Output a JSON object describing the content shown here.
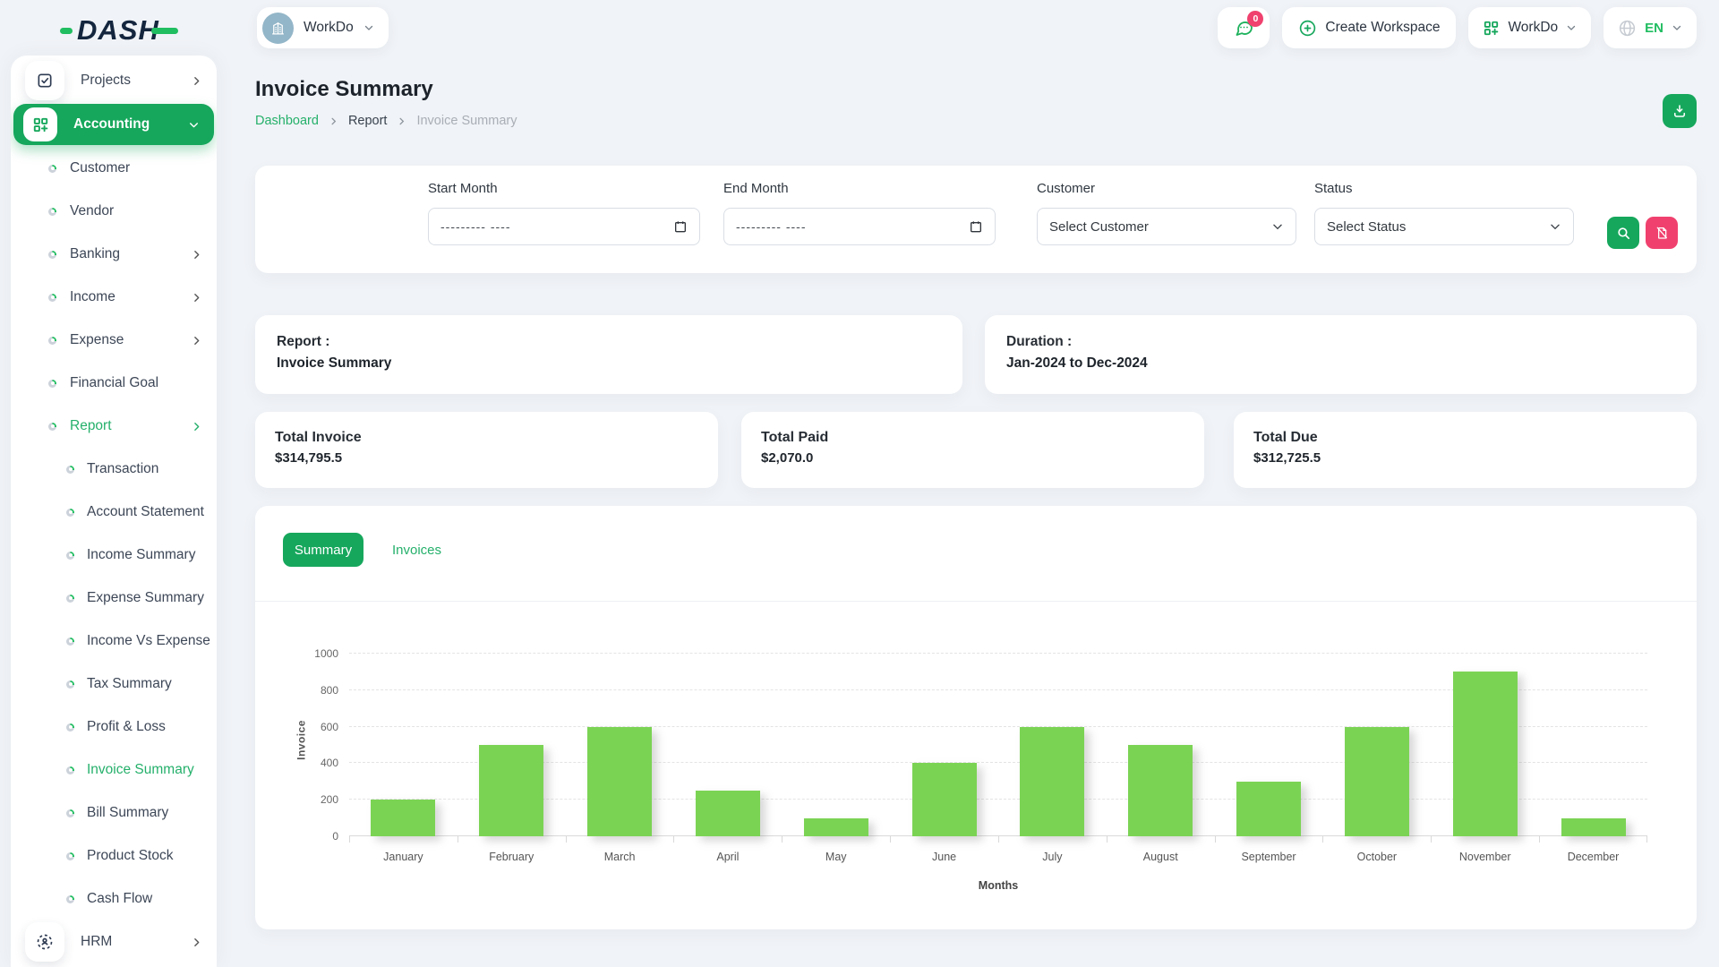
{
  "colors": {
    "page_bg": "#f0f3f7",
    "primary_green": "#16a75c",
    "accent_green": "#21bd61",
    "link_green": "#25b06b",
    "accent_pink": "#f0416e",
    "bar_green": "#7bd354",
    "avatar_blue": "#93b6c8"
  },
  "brand": {
    "logo_text": "DASH"
  },
  "header": {
    "workspace_label": "WorkDo",
    "messages_badge": "0",
    "create_workspace_label": "Create Workspace",
    "workspace_switcher_label": "WorkDo",
    "language": "EN"
  },
  "sidebar": {
    "items": [
      {
        "label": "Projects",
        "type": "top",
        "icon": "checkbox",
        "chevron": "right"
      },
      {
        "label": "Accounting",
        "type": "top-active",
        "icon": "grid-plus",
        "chevron": "down"
      },
      {
        "label": "Customer",
        "level": 1
      },
      {
        "label": "Vendor",
        "level": 1
      },
      {
        "label": "Banking",
        "level": 1,
        "chevron": "right"
      },
      {
        "label": "Income",
        "level": 1,
        "chevron": "right"
      },
      {
        "label": "Expense",
        "level": 1,
        "chevron": "right"
      },
      {
        "label": "Financial Goal",
        "level": 1
      },
      {
        "label": "Report",
        "level": 1,
        "chevron": "right",
        "active": true
      },
      {
        "label": "Transaction",
        "level": 2
      },
      {
        "label": "Account Statement",
        "level": 2
      },
      {
        "label": "Income Summary",
        "level": 2
      },
      {
        "label": "Expense Summary",
        "level": 2
      },
      {
        "label": "Income Vs Expense",
        "level": 2
      },
      {
        "label": "Tax Summary",
        "level": 2
      },
      {
        "label": "Profit & Loss",
        "level": 2
      },
      {
        "label": "Invoice Summary",
        "level": 2,
        "active": true
      },
      {
        "label": "Bill Summary",
        "level": 2
      },
      {
        "label": "Product Stock",
        "level": 2
      },
      {
        "label": "Cash Flow",
        "level": 2
      },
      {
        "label": "HRM",
        "type": "top",
        "icon": "hrm",
        "chevron": "right"
      }
    ]
  },
  "page": {
    "title": "Invoice Summary",
    "breadcrumb": [
      "Dashboard",
      "Report",
      "Invoice Summary"
    ]
  },
  "filters": {
    "start_month": {
      "label": "Start Month",
      "placeholder": "--------- ----"
    },
    "end_month": {
      "label": "End Month",
      "placeholder": "--------- ----"
    },
    "customer": {
      "label": "Customer",
      "value": "Select Customer"
    },
    "status": {
      "label": "Status",
      "value": "Select Status"
    }
  },
  "summary_cards": {
    "report": {
      "label": "Report :",
      "value": "Invoice Summary"
    },
    "duration": {
      "label": "Duration :",
      "value": "Jan-2024 to Dec-2024"
    }
  },
  "totals": [
    {
      "label": "Total Invoice",
      "value": "$314,795.5"
    },
    {
      "label": "Total Paid",
      "value": "$2,070.0"
    },
    {
      "label": "Total Due",
      "value": "$312,725.5"
    }
  ],
  "tabs": [
    {
      "label": "Summary",
      "active": true
    },
    {
      "label": "Invoices",
      "active": false
    }
  ],
  "chart_data": {
    "type": "bar",
    "title": "",
    "categories": [
      "January",
      "February",
      "March",
      "April",
      "May",
      "June",
      "July",
      "August",
      "September",
      "October",
      "November",
      "December"
    ],
    "values": [
      200,
      500,
      600,
      250,
      100,
      400,
      600,
      500,
      300,
      600,
      900,
      100
    ],
    "xlabel": "Months",
    "ylabel": "Invoice",
    "ylim": [
      0,
      1000
    ],
    "ytick_step": 200,
    "grid": "dashed-horizontal",
    "legend": "none",
    "bar_color": "#7bd354"
  }
}
